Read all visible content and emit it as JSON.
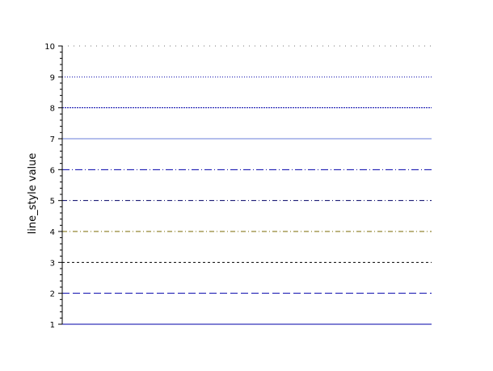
{
  "chart_data": {
    "type": "line",
    "title": "",
    "xlabel": "",
    "ylabel": "line_style value",
    "ylim": [
      1,
      10
    ],
    "yticks": [
      1,
      2,
      3,
      4,
      5,
      6,
      7,
      8,
      9,
      10
    ],
    "minor_ticks_per_interval": 4,
    "grid": false,
    "legend": "none",
    "series": [
      {
        "y": 1,
        "style": "solid",
        "color": "#0000aa"
      },
      {
        "y": 2,
        "style": "long-dash",
        "color": "#0000aa"
      },
      {
        "y": 3,
        "style": "dash",
        "color": "#000000"
      },
      {
        "y": 4,
        "style": "dash-dot",
        "color": "#7a6a00"
      },
      {
        "y": 5,
        "style": "dash-dot",
        "color": "#000066"
      },
      {
        "y": 6,
        "style": "long-dash-dot",
        "color": "#0000aa"
      },
      {
        "y": 7,
        "style": "solid-thin",
        "color": "#6a7dd8"
      },
      {
        "y": 8,
        "style": "fine-dash",
        "color": "#0000aa"
      },
      {
        "y": 9,
        "style": "dot",
        "color": "#0000aa"
      },
      {
        "y": 10,
        "style": "sparse-dot",
        "color": "#777777"
      }
    ]
  }
}
